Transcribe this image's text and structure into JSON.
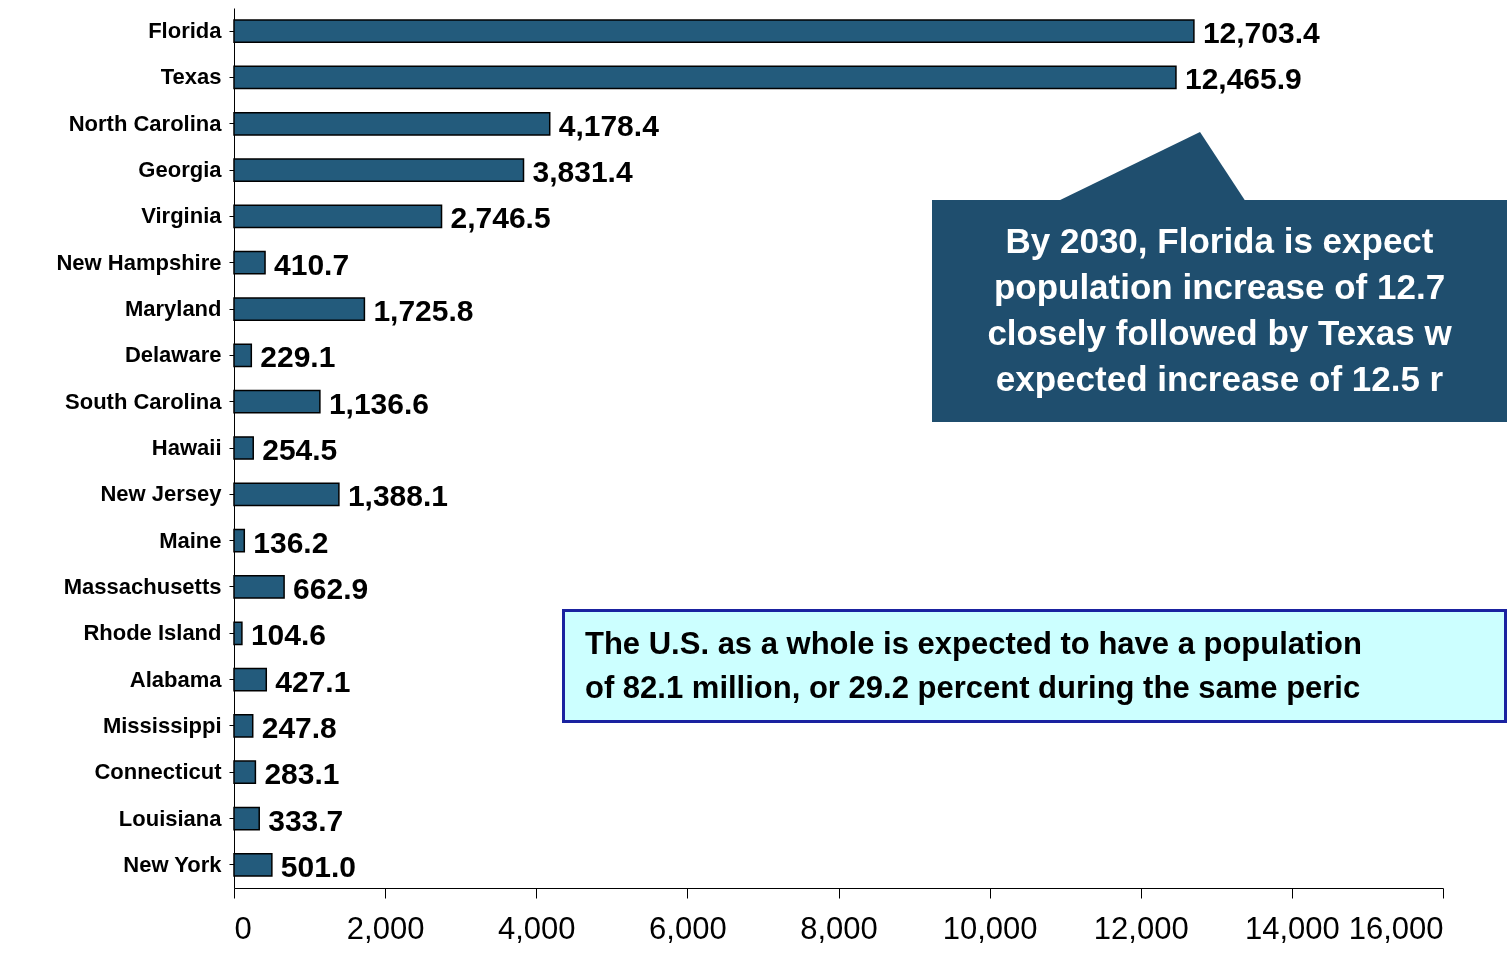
{
  "chart_data": {
    "type": "bar",
    "orientation": "horizontal",
    "categories": [
      "Florida",
      "Texas",
      "North Carolina",
      "Georgia",
      "Virginia",
      "New Hampshire",
      "Maryland",
      "Delaware",
      "South Carolina",
      "Hawaii",
      "New Jersey",
      "Maine",
      "Massachusetts",
      "Rhode Island",
      "Alabama",
      "Mississippi",
      "Connecticut",
      "Louisiana",
      "New York"
    ],
    "values": [
      12703.4,
      12465.9,
      4178.4,
      3831.4,
      2746.5,
      410.7,
      1725.8,
      229.1,
      1136.6,
      254.5,
      1388.1,
      136.2,
      662.9,
      104.6,
      427.1,
      247.8,
      283.1,
      333.7,
      501.0
    ],
    "value_labels": [
      "12,703.4",
      "12,465.9",
      "4,178.4",
      "3,831.4",
      "2,746.5",
      "410.7",
      "1,725.8",
      "229.1",
      "1,136.6",
      "254.5",
      "1,388.1",
      "136.2",
      "662.9",
      "104.6",
      "427.1",
      "247.8",
      "283.1",
      "333.7",
      "501.0"
    ],
    "color": "#235b7c",
    "xlim": [
      0,
      16000
    ],
    "xticks": [
      0,
      {
        "value": 2000,
        "label": "2,000"
      },
      {
        "value": 4000,
        "label": "4,000"
      },
      {
        "value": 6000,
        "label": "6,000"
      },
      {
        "value": 8000,
        "label": "8,000"
      },
      {
        "value": 10000,
        "label": "10,000"
      },
      {
        "value": 12000,
        "label": "12,000"
      },
      {
        "value": 14000,
        "label": "14,000"
      },
      {
        "value": 16000,
        "label": "16,000"
      }
    ],
    "grid": false,
    "annotations": [
      "By 2030, Florida is expect\npopulation increase of 12.7\nclosely followed by Texas w\nexpected increase of 12.5 r",
      "The U.S. as a whole is expected to have a population\nof 82.1 million, or 29.2 percent during the same peric"
    ]
  }
}
